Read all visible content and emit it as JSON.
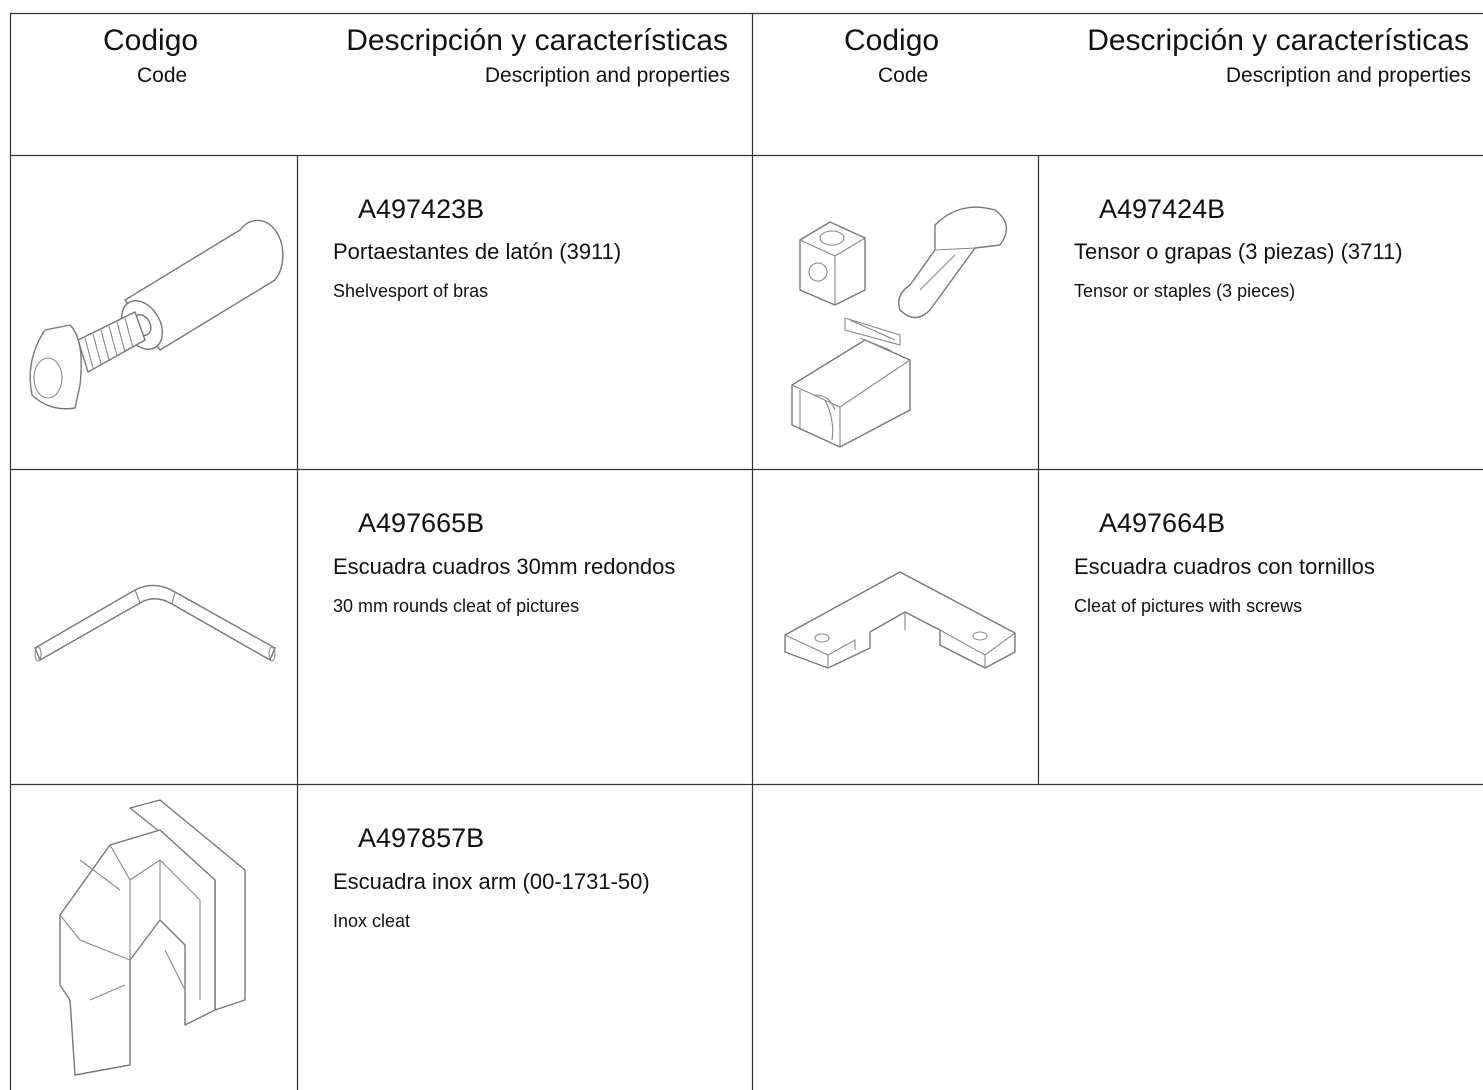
{
  "header": {
    "columns": [
      {
        "code_es": "Codigo",
        "code_en": "Code",
        "desc_es": "Descripción y características",
        "desc_en": "Description and properties"
      },
      {
        "code_es": "Codigo",
        "code_en": "Code",
        "desc_es": "Descripción y características",
        "desc_en": "Description and properties"
      }
    ]
  },
  "items": [
    {
      "code": "A497423B",
      "name_es": "Portaestantes de latón  (3911)",
      "name_en": "Shelvesport of bras"
    },
    {
      "code": "A497424B",
      "name_es": "Tensor o grapas (3 piezas)  (3711)",
      "name_en": "Tensor or staples (3 pieces)"
    },
    {
      "code": "A497665B",
      "name_es": "Escuadra cuadros 30mm redondos",
      "name_en": "30 mm rounds cleat of pictures"
    },
    {
      "code": "A497664B",
      "name_es": "Escuadra cuadros con tornillos",
      "name_en": "Cleat of pictures with screws"
    },
    {
      "code": "A497857B",
      "name_es": "Escuadra inox arm  (00-1731-50)",
      "name_en": "Inox cleat"
    }
  ]
}
